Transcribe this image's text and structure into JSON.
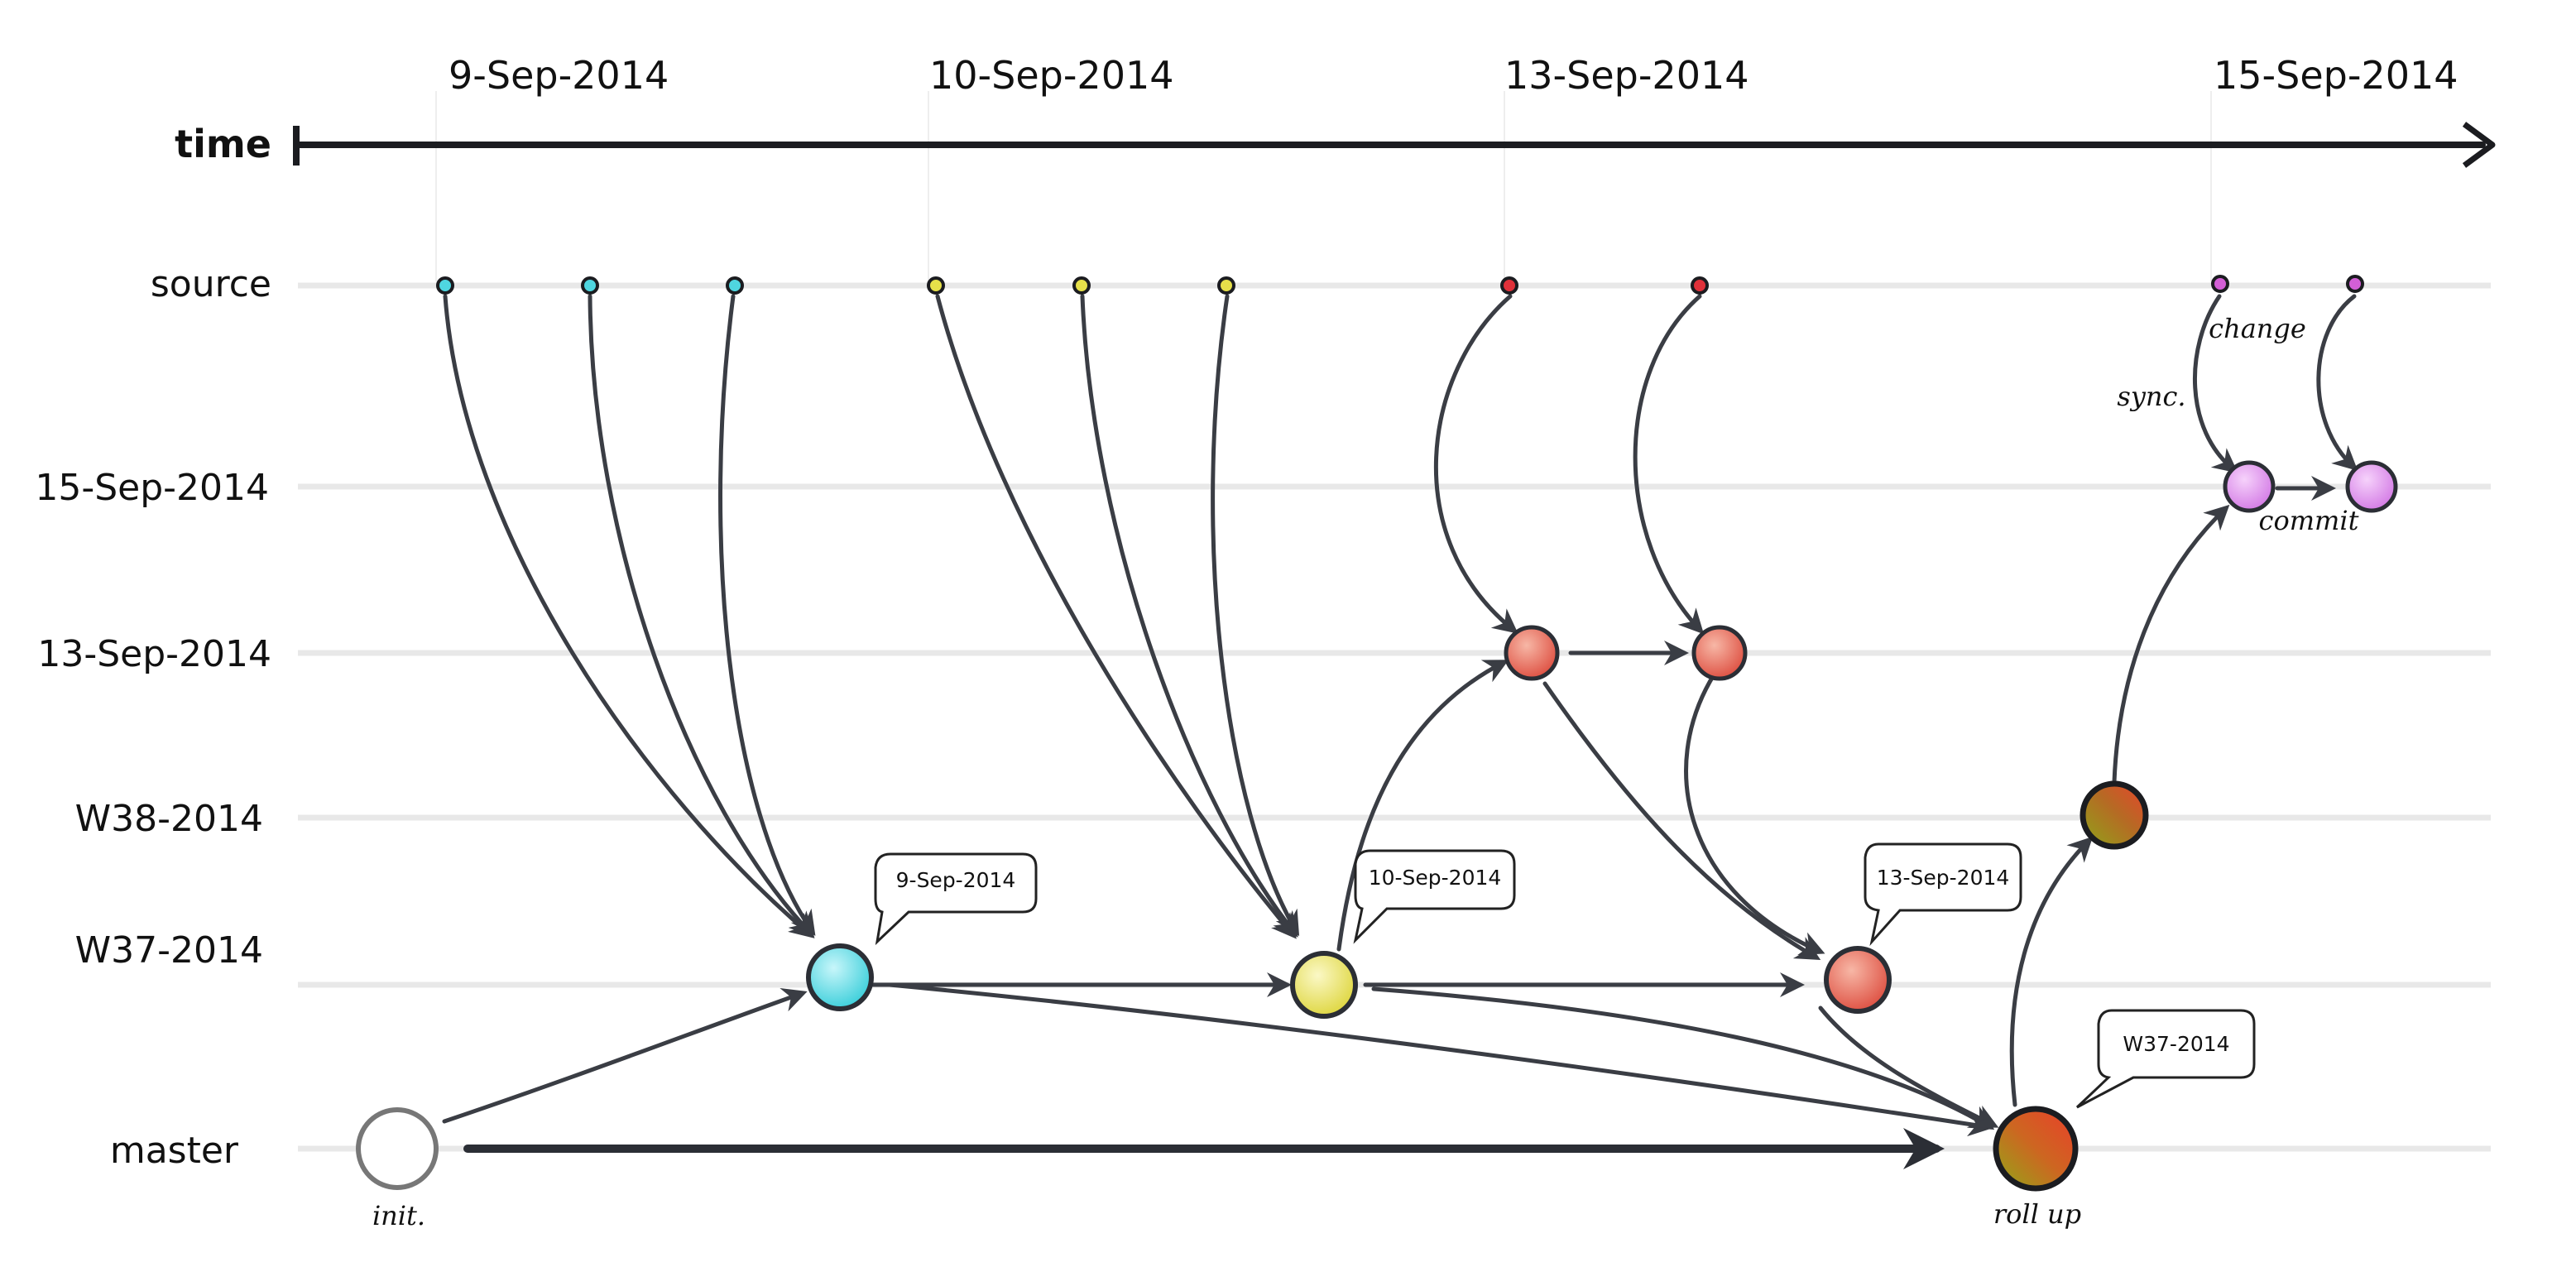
{
  "timeline": {
    "axis_label": "time",
    "dates": [
      "9-Sep-2014",
      "10-Sep-2014",
      "13-Sep-2014",
      "15-Sep-2014"
    ]
  },
  "lanes": {
    "source": "source",
    "sep15": "15-Sep-2014",
    "sep13": "13-Sep-2014",
    "w38": "W38-2014",
    "w37": "W37-2014",
    "master": "master"
  },
  "annotations": {
    "init": "init.",
    "roll_up": "roll up",
    "sync": "sync.",
    "change": "change",
    "commit": "commit"
  },
  "callouts": {
    "sep9": "9-Sep-2014",
    "sep10": "10-Sep-2014",
    "sep13": "13-Sep-2014",
    "w37": "W37-2014"
  },
  "colors": {
    "cyan": "#4fd6e0",
    "yellow": "#e6e04a",
    "red": "#e0574a",
    "magenta": "#d77ee6",
    "w38": "#b06a24",
    "rollup": "#cc5d22",
    "dark": "#2b2e35"
  }
}
